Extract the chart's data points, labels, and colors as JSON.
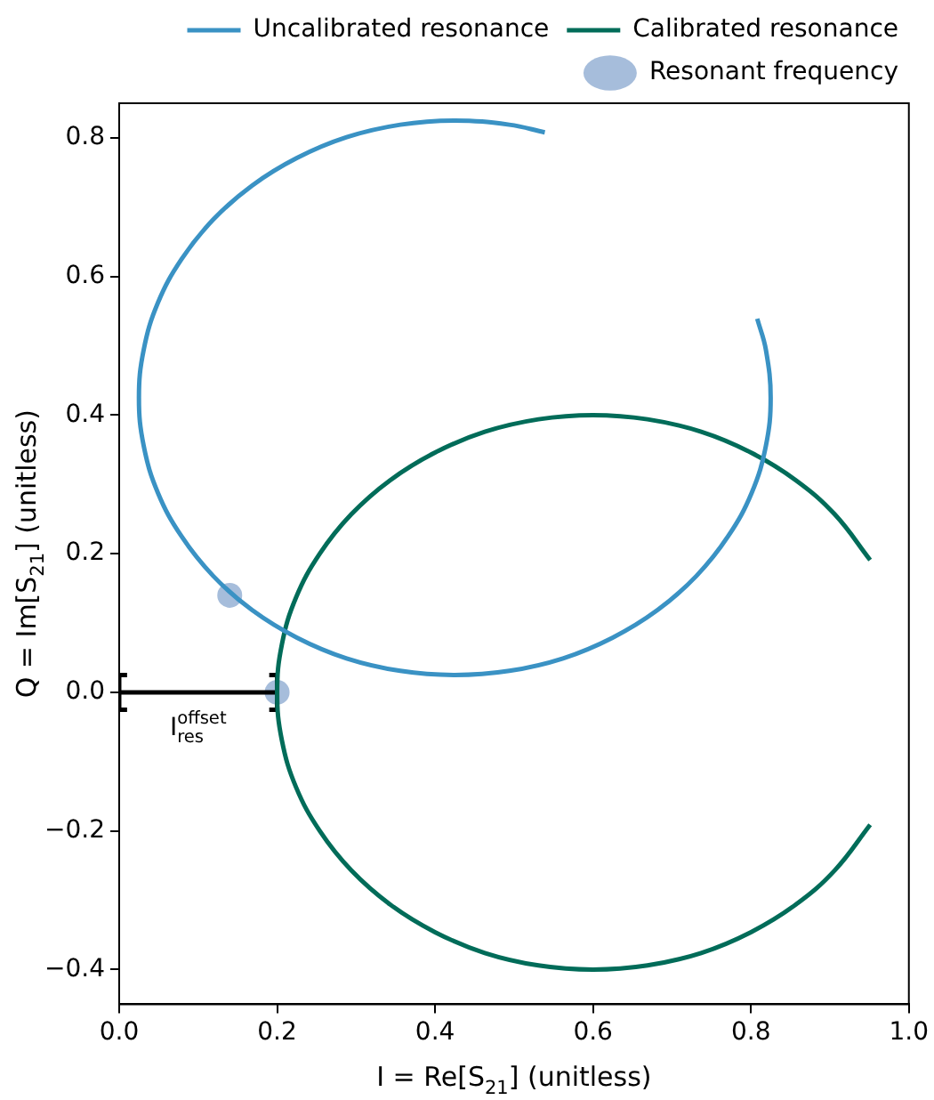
{
  "chart_data": {
    "type": "line",
    "xlabel": "I = Re[S$_{21}$] (unitless)",
    "ylabel": "Q = Im[S$_{21}$] (unitless)",
    "xlim": [
      0,
      1
    ],
    "ylim": [
      -0.45,
      0.85
    ],
    "xticks": [
      {
        "value": 0,
        "label": "0.0"
      },
      0.2,
      0.4,
      0.6,
      0.8,
      {
        "value": 1,
        "label": "1.0"
      }
    ],
    "yticks": [
      -0.4,
      -0.2,
      {
        "value": 0,
        "label": "0.0"
      },
      0.2,
      0.4,
      0.6,
      0.8
    ],
    "grid": false,
    "legend": "top right",
    "annotations": [
      {
        "text": "I$_{res}$$^{offset}$",
        "x": 0.1,
        "y": 0
      }
    ],
    "series": [
      {
        "name": "Uncalibrated resonance",
        "type": "line",
        "color": "#3a92c4",
        "x": [
          0.539,
          0.494,
          0.425,
          0.356,
          0.288,
          0.225,
          0.168,
          0.119,
          0.079,
          0.049,
          0.031,
          0.025,
          0.031,
          0.049,
          0.079,
          0.119,
          0.168,
          0.225,
          0.288,
          0.356,
          0.425,
          0.494,
          0.562,
          0.625,
          0.682,
          0.731,
          0.771,
          0.801,
          0.819,
          0.825,
          0.819,
          0.808
        ],
        "values": [
          0.808,
          0.819,
          0.825,
          0.819,
          0.801,
          0.771,
          0.731,
          0.682,
          0.625,
          0.562,
          0.494,
          0.425,
          0.356,
          0.288,
          0.225,
          0.168,
          0.119,
          0.079,
          0.049,
          0.031,
          0.025,
          0.031,
          0.049,
          0.079,
          0.119,
          0.168,
          0.225,
          0.288,
          0.356,
          0.425,
          0.494,
          0.539
        ]
      },
      {
        "name": "Calibrated resonance",
        "type": "line",
        "color": "#016c59",
        "x": [
          0.951,
          0.906,
          0.857,
          0.8,
          0.737,
          0.669,
          0.6,
          0.531,
          0.463,
          0.4,
          0.343,
          0.294,
          0.254,
          0.224,
          0.206,
          0.2,
          0.206,
          0.224,
          0.254,
          0.294,
          0.343,
          0.4,
          0.463,
          0.531,
          0.6,
          0.669,
          0.737,
          0.8,
          0.857,
          0.906,
          0.951
        ],
        "values": [
          0.191,
          0.257,
          0.306,
          0.346,
          0.376,
          0.394,
          0.4,
          0.394,
          0.376,
          0.346,
          0.306,
          0.257,
          0.2,
          0.137,
          0.069,
          0,
          -0.069,
          -0.137,
          -0.2,
          -0.257,
          -0.306,
          -0.346,
          -0.376,
          -0.394,
          -0.4,
          -0.394,
          -0.376,
          -0.346,
          -0.306,
          -0.257,
          -0.191
        ]
      },
      {
        "type": "line",
        "color": "#000000",
        "x": [
          0.01,
          0,
          0,
          0.01,
          null,
          0,
          0.2,
          null,
          0.19,
          0.2,
          0.2,
          0.19
        ],
        "values": [
          0.025,
          0.025,
          -0.025,
          -0.025,
          null,
          0,
          0,
          null,
          0.025,
          0.025,
          -0.025,
          -0.025
        ]
      },
      {
        "name": "Resonant frequency",
        "type": "scatter",
        "color": "#a6bddb",
        "marker": "circle",
        "x": [
          0.14,
          0.2
        ],
        "values": [
          0.14,
          0
        ]
      }
    ]
  }
}
